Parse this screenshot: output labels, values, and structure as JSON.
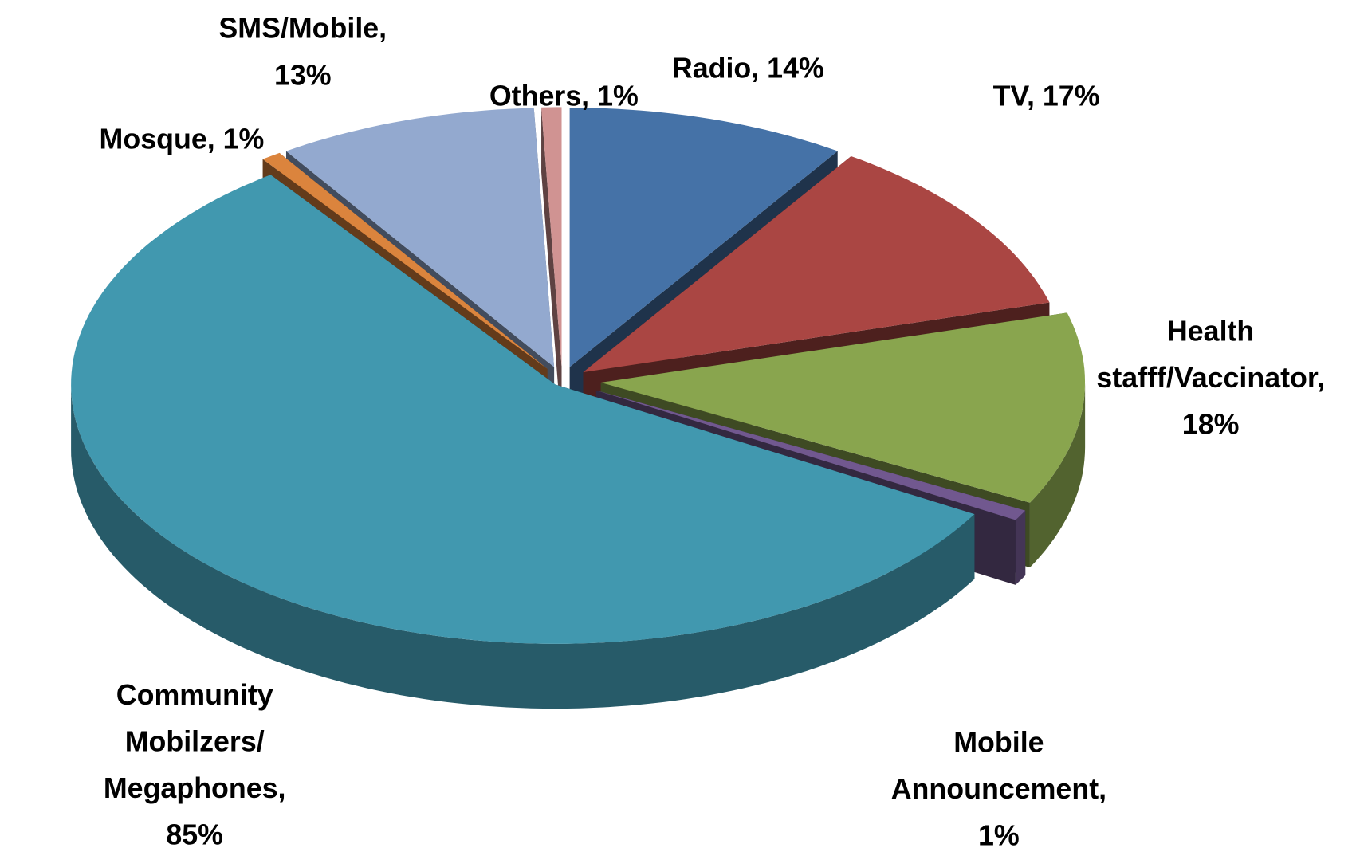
{
  "chart_data": {
    "type": "pie3d",
    "values": [
      14,
      17,
      18,
      1,
      85,
      1,
      13,
      1
    ],
    "value_labels": [
      "Radio, 14%",
      "TV, 17%",
      "Health\nstafff/Vaccinator,\n18%",
      "Mobile\nAnnouncement,\n1%",
      "Community\nMobilzers/\nMegaphones,\n85%",
      "Mosque, 1%",
      "SMS/Mobile,\n13%",
      "Others, 1%"
    ],
    "colors": [
      "#4572a7",
      "#aa4643",
      "#89a54e",
      "#71588f",
      "#4198af",
      "#db843d",
      "#93a9cf",
      "#d09392"
    ]
  }
}
